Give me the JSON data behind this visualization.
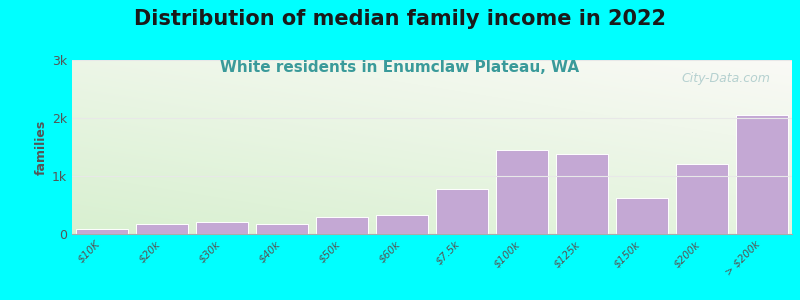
{
  "title": "Distribution of median family income in 2022",
  "subtitle": "White residents in Enumclaw Plateau, WA",
  "ylabel": "families",
  "background_color": "#00FFFF",
  "bar_color": "#c4a8d4",
  "bar_edge_color": "#ffffff",
  "categories": [
    "$10K",
    "$20k",
    "$30k",
    "$40k",
    "$50k",
    "$60k",
    "$7.5k",
    "$100k",
    "$125k",
    "$150k",
    "$200k",
    "> $200k"
  ],
  "values": [
    90,
    175,
    210,
    175,
    290,
    320,
    780,
    1450,
    1380,
    620,
    1200,
    2050
  ],
  "ylim": [
    0,
    3000
  ],
  "yticks": [
    0,
    1000,
    2000,
    3000
  ],
  "ytick_labels": [
    "0",
    "1k",
    "2k",
    "3k"
  ],
  "title_fontsize": 15,
  "subtitle_fontsize": 11,
  "subtitle_color": "#3a9a9a",
  "watermark": "City-Data.com",
  "watermark_color": "#aacaca",
  "grid_color": "#e8e8e8"
}
